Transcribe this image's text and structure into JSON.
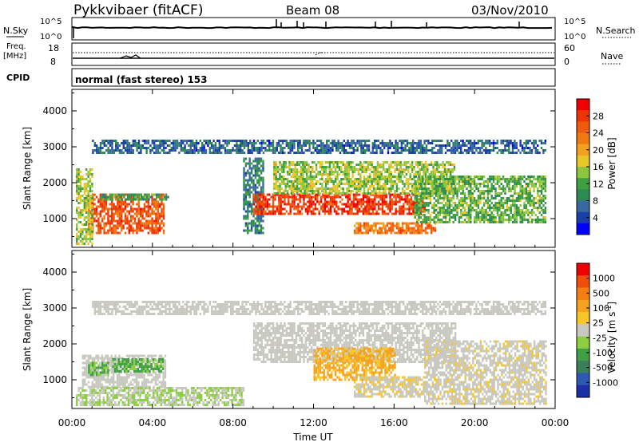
{
  "header": {
    "station": "Pykkvibaer (fitACF)",
    "beam": "Beam 08",
    "date": "03/Nov/2010"
  },
  "sky_panel": {
    "left_label": "N.Sky",
    "left_ticks": [
      "10^5",
      "10^0"
    ],
    "right_ticks": [
      "10^5",
      "10^0"
    ],
    "right_label": "N.Search"
  },
  "freq_panel": {
    "left_label_1": "Freq.",
    "left_label_2": "[MHz]",
    "left_ticks": [
      "18",
      "8"
    ],
    "right_ticks": [
      "60",
      "0"
    ],
    "right_label": "Nave"
  },
  "cpid_panel": {
    "label": "CPID",
    "text": "normal (fast stereo) 153"
  },
  "power_panel": {
    "ylabel": "Slant Range [km]",
    "yticks": [
      "4000",
      "3000",
      "2000",
      "1000"
    ],
    "colorbar_label": "Power [dB]",
    "colorbar_ticks": [
      "28",
      "24",
      "20",
      "16",
      "12",
      "8",
      "4"
    ],
    "colorbar_colors": [
      "#0000ff",
      "#1b3fa8",
      "#3a68a0",
      "#2e8a53",
      "#3fa040",
      "#8cc63f",
      "#e9c62a",
      "#f3a020",
      "#f07a12",
      "#ef5b0c",
      "#ee3306",
      "#f00000"
    ]
  },
  "velocity_panel": {
    "ylabel": "Slant Range [km]",
    "yticks": [
      "4000",
      "3000",
      "2000",
      "1000"
    ],
    "colorbar_label": "Velocity [m s",
    "colorbar_label_sup": "-1",
    "colorbar_label_end": "]",
    "colorbar_ticks": [
      "1000",
      "500",
      "100",
      "25",
      "-25",
      "-100",
      "-500",
      "-1000"
    ],
    "colorbar_colors": [
      "#1d2fa5",
      "#2f58b3",
      "#3b7f5a",
      "#3fa046",
      "#8ccf40",
      "#c8c8c0",
      "#f6c62a",
      "#f5a31f",
      "#f47f12",
      "#ef4e0a",
      "#ee0000"
    ]
  },
  "xaxis": {
    "label": "Time UT",
    "ticks": [
      "00:00",
      "04:00",
      "08:00",
      "12:00",
      "16:00",
      "20:00",
      "00:00"
    ]
  },
  "chart_data": [
    {
      "type": "heatmap",
      "title": "Power",
      "x_range_hours": [
        0,
        24
      ],
      "y_range_km": [
        200,
        4600
      ],
      "quantity": "Power [dB]",
      "color_range": [
        0,
        30
      ],
      "regions": [
        {
          "t0": 0.8,
          "t1": 4.6,
          "r0": 600,
          "r1": 1700,
          "value": 24
        },
        {
          "t0": 0.2,
          "t1": 1.0,
          "r0": 300,
          "r1": 2400,
          "value": 14
        },
        {
          "t0": 1.4,
          "t1": 4.8,
          "r0": 1500,
          "r1": 1700,
          "value": 10
        },
        {
          "t0": 8.5,
          "t1": 9.5,
          "r0": 600,
          "r1": 2700,
          "value": 8
        },
        {
          "t0": 9.0,
          "t1": 17.5,
          "r0": 1100,
          "r1": 1700,
          "value": 26
        },
        {
          "t0": 10.0,
          "t1": 19.0,
          "r0": 1700,
          "r1": 2600,
          "value": 14
        },
        {
          "t0": 14.0,
          "t1": 18.0,
          "r0": 600,
          "r1": 900,
          "value": 22
        },
        {
          "t0": 17.0,
          "t1": 23.5,
          "r0": 900,
          "r1": 2200,
          "value": 12
        },
        {
          "t0": 1.0,
          "t1": 23.5,
          "r0": 2800,
          "r1": 3200,
          "value": 6
        }
      ]
    },
    {
      "type": "heatmap",
      "title": "Velocity",
      "x_range_hours": [
        0,
        24
      ],
      "y_range_km": [
        200,
        4600
      ],
      "quantity": "Velocity [m s-1]",
      "color_range": [
        -1000,
        1000
      ],
      "regions": [
        {
          "t0": 0.5,
          "t1": 4.6,
          "r0": 800,
          "r1": 1700,
          "value": 0
        },
        {
          "t0": 2.0,
          "t1": 4.5,
          "r0": 1200,
          "r1": 1600,
          "value": -300
        },
        {
          "t0": 0.8,
          "t1": 1.8,
          "r0": 1100,
          "r1": 1500,
          "value": -300
        },
        {
          "t0": 0.2,
          "t1": 8.5,
          "r0": 300,
          "r1": 800,
          "value": -80
        },
        {
          "t0": 9.0,
          "t1": 19.0,
          "r0": 1500,
          "r1": 2600,
          "value": 0
        },
        {
          "t0": 12.0,
          "t1": 16.0,
          "r0": 1000,
          "r1": 1900,
          "value": 300
        },
        {
          "t0": 14.0,
          "t1": 17.5,
          "r0": 500,
          "r1": 1100,
          "value": 60
        },
        {
          "t0": 17.5,
          "t1": 23.5,
          "r0": 300,
          "r1": 2100,
          "value": 40
        },
        {
          "t0": 1.0,
          "t1": 23.5,
          "r0": 2800,
          "r1": 3200,
          "value": 0
        }
      ]
    }
  ]
}
